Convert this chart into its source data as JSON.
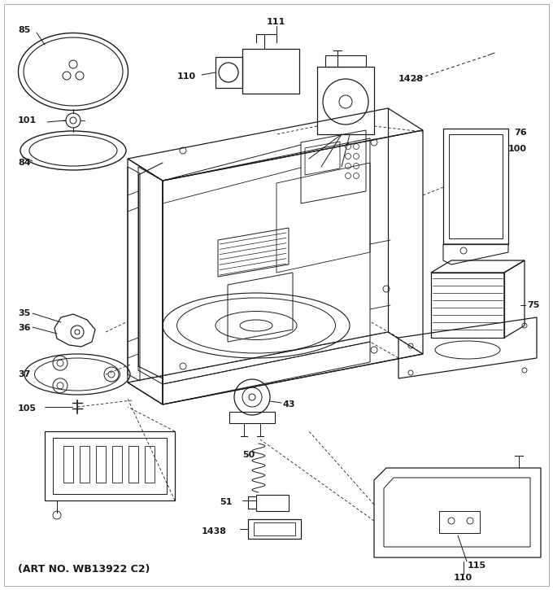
{
  "art_no": "(ART NO. WB13922 C2)",
  "bg_color": "#ffffff",
  "line_color": "#1a1a1a",
  "fig_width": 6.8,
  "fig_height": 7.25,
  "dpi": 100,
  "border_color": "#333333"
}
